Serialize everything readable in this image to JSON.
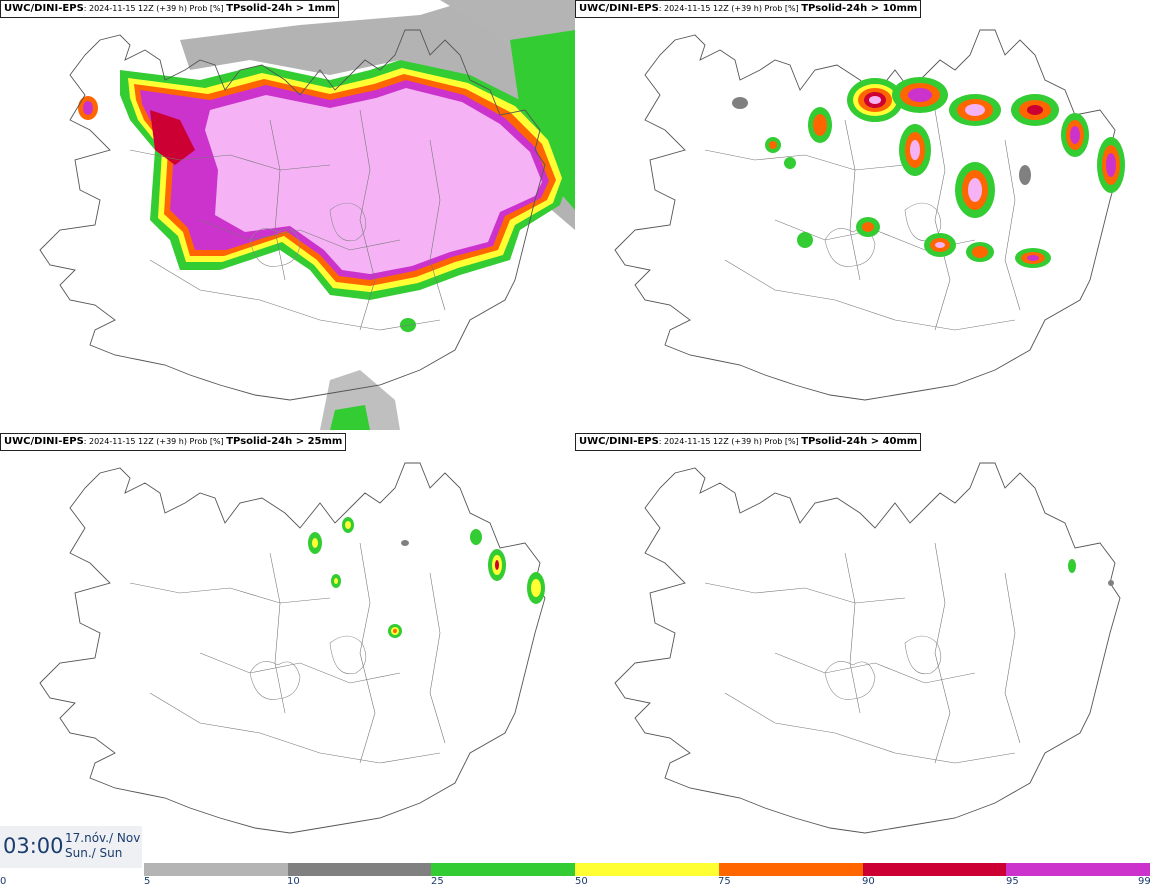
{
  "panels": [
    {
      "model": "UWC/DINI-EPS",
      "meta": ": 2024-11-15 12Z (+39 h) Prob [%] ",
      "param": "TPsolid-24h > 1mm"
    },
    {
      "model": "UWC/DINI-EPS",
      "meta": ": 2024-11-15 12Z (+39 h) Prob [%] ",
      "param": "TPsolid-24h > 10mm"
    },
    {
      "model": "UWC/DINI-EPS",
      "meta": ": 2024-11-15 12Z (+39 h) Prob [%] ",
      "param": "TPsolid-24h > 25mm"
    },
    {
      "model": "UWC/DINI-EPS",
      "meta": ": 2024-11-15 12Z (+39 h) Prob [%] ",
      "param": "TPsolid-24h > 40mm"
    }
  ],
  "valid_time": {
    "time": "03:00",
    "date": "17.nóv./ Nov",
    "day": "Sun./ Sun"
  },
  "colorbar": {
    "ticks": [
      "0",
      "5",
      "10",
      "25",
      "50",
      "75",
      "90",
      "95",
      "99"
    ],
    "segments": [
      {
        "from": "5",
        "to": "10",
        "color": "#b4b4b4"
      },
      {
        "from": "10",
        "to": "25",
        "color": "#808080"
      },
      {
        "from": "25",
        "to": "50",
        "color": "#33cc33"
      },
      {
        "from": "50",
        "to": "75",
        "color": "#ffff33"
      },
      {
        "from": "75",
        "to": "90",
        "color": "#ff6600"
      },
      {
        "from": "90",
        "to": "95",
        "color": "#cc0033"
      },
      {
        "from": "95",
        "to": "99",
        "color": "#cc33cc"
      },
      {
        "from": "99",
        "to": "",
        "color": "#f5b3f5"
      }
    ]
  }
}
